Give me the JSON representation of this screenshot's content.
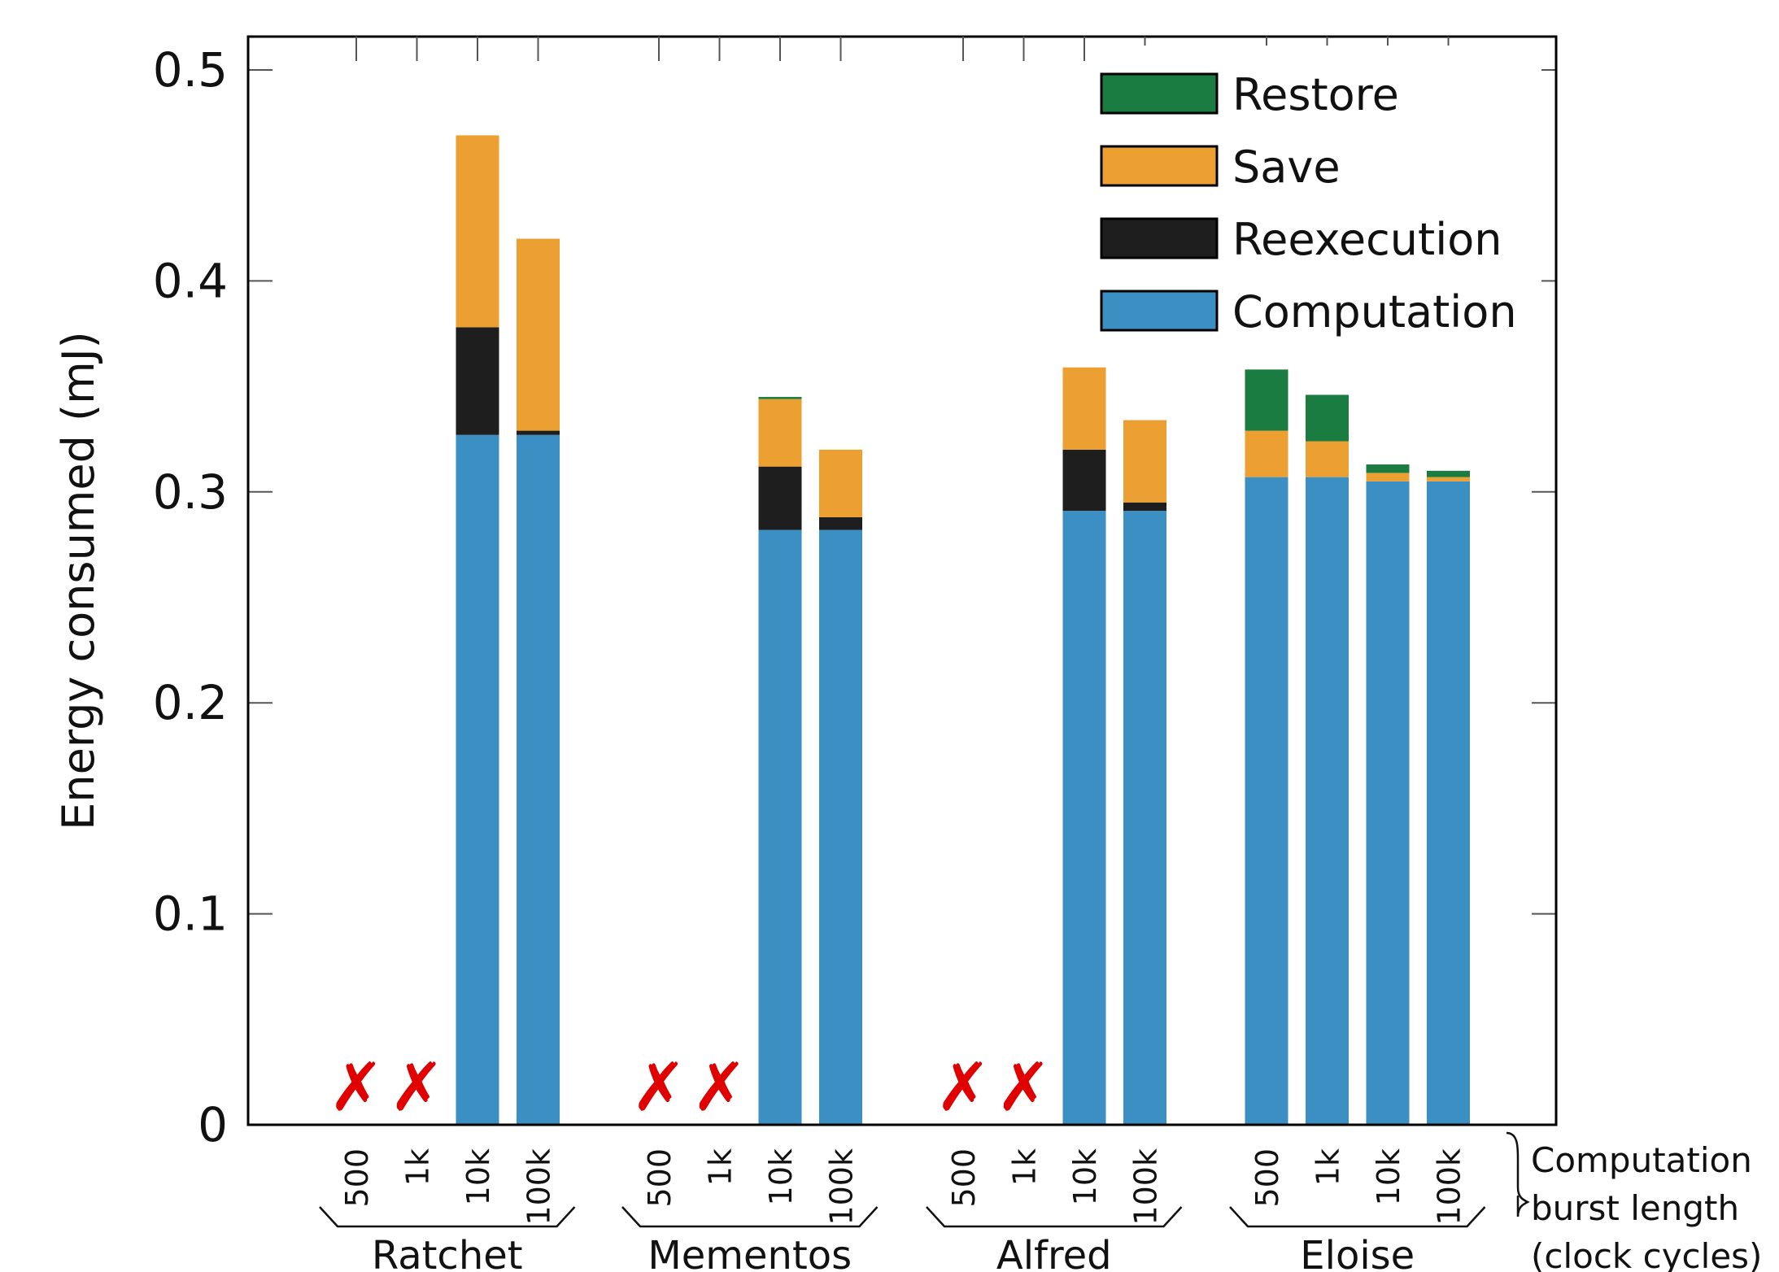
{
  "chart_data": {
    "type": "bar",
    "stacked": true,
    "ylabel": "Energy consumed (mJ)",
    "ylim": [
      0,
      0.5
    ],
    "yticks": [
      "0",
      "0.1",
      "0.2",
      "0.3",
      "0.4",
      "0.5"
    ],
    "grid": false,
    "legend_position": "top-right",
    "burst_lengths": [
      "500",
      "1k",
      "10k",
      "100k"
    ],
    "burst_axis_note": [
      "Computation",
      "burst length",
      "(clock cycles)"
    ],
    "failed_marker": "✗",
    "groups": [
      {
        "name": "Ratchet",
        "bars": [
          {
            "burst": "500",
            "failed": true
          },
          {
            "burst": "1k",
            "failed": true
          },
          {
            "burst": "10k",
            "failed": false,
            "values": {
              "Computation": 0.327,
              "Reexecution": 0.051,
              "Save": 0.091,
              "Restore": 0
            }
          },
          {
            "burst": "100k",
            "failed": false,
            "values": {
              "Computation": 0.327,
              "Reexecution": 0.002,
              "Save": 0.091,
              "Restore": 0
            }
          }
        ]
      },
      {
        "name": "Mementos",
        "bars": [
          {
            "burst": "500",
            "failed": true
          },
          {
            "burst": "1k",
            "failed": true
          },
          {
            "burst": "10k",
            "failed": false,
            "values": {
              "Computation": 0.282,
              "Reexecution": 0.03,
              "Save": 0.032,
              "Restore": 0.001
            }
          },
          {
            "burst": "100k",
            "failed": false,
            "values": {
              "Computation": 0.282,
              "Reexecution": 0.006,
              "Save": 0.032,
              "Restore": 0
            }
          }
        ]
      },
      {
        "name": "Alfred",
        "bars": [
          {
            "burst": "500",
            "failed": true
          },
          {
            "burst": "1k",
            "failed": true
          },
          {
            "burst": "10k",
            "failed": false,
            "values": {
              "Computation": 0.291,
              "Reexecution": 0.029,
              "Save": 0.039,
              "Restore": 0
            }
          },
          {
            "burst": "100k",
            "failed": false,
            "values": {
              "Computation": 0.291,
              "Reexecution": 0.004,
              "Save": 0.039,
              "Restore": 0
            }
          }
        ]
      },
      {
        "name": "Eloise",
        "bars": [
          {
            "burst": "500",
            "failed": false,
            "values": {
              "Computation": 0.307,
              "Reexecution": 0,
              "Save": 0.022,
              "Restore": 0.029
            }
          },
          {
            "burst": "1k",
            "failed": false,
            "values": {
              "Computation": 0.307,
              "Reexecution": 0,
              "Save": 0.017,
              "Restore": 0.022
            }
          },
          {
            "burst": "10k",
            "failed": false,
            "values": {
              "Computation": 0.305,
              "Reexecution": 0,
              "Save": 0.004,
              "Restore": 0.004
            }
          },
          {
            "burst": "100k",
            "failed": false,
            "values": {
              "Computation": 0.305,
              "Reexecution": 0,
              "Save": 0.002,
              "Restore": 0.003
            }
          }
        ]
      }
    ],
    "series": [
      {
        "name": "Computation",
        "color": "#3b8fc2"
      },
      {
        "name": "Reexecution",
        "color": "#1e1e1e"
      },
      {
        "name": "Save",
        "color": "#eca032"
      },
      {
        "name": "Restore",
        "color": "#1a7c40"
      }
    ],
    "legend": [
      {
        "name": "Restore",
        "color": "#1a7c40"
      },
      {
        "name": "Save",
        "color": "#eca032"
      },
      {
        "name": "Reexecution",
        "color": "#1e1e1e"
      },
      {
        "name": "Computation",
        "color": "#3b8fc2"
      }
    ]
  }
}
